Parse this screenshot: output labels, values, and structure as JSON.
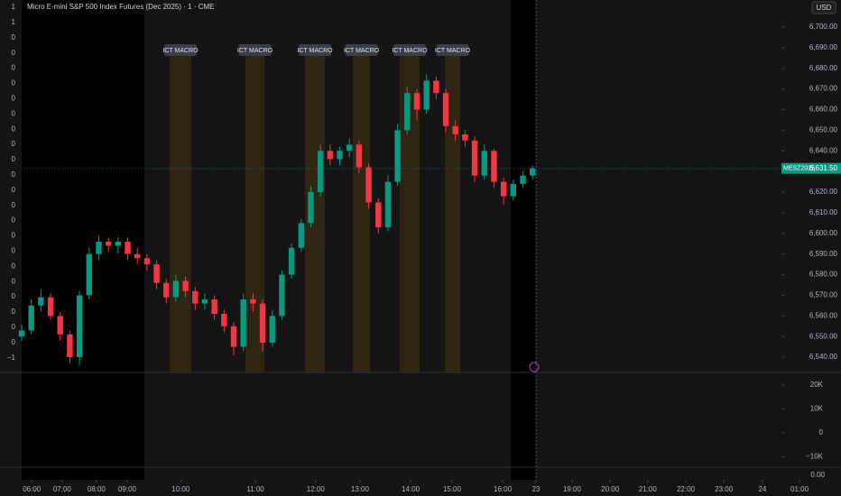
{
  "chart_data": {
    "type": "candlestick",
    "title": "Micro E-mini S&P 500 Index Futures (Dec 2025) · 1 · CME",
    "currency": "USD",
    "xlim": [
      0,
      170
    ],
    "ylim": [
      6532.6,
      6713.1
    ],
    "yticks": [
      {
        "value": 6540,
        "label": "6,540.00"
      },
      {
        "value": 6550,
        "label": "6,550.00"
      },
      {
        "value": 6560,
        "label": "6,560.00"
      },
      {
        "value": 6570,
        "label": "6,570.00"
      },
      {
        "value": 6580,
        "label": "6,580.00"
      },
      {
        "value": 6590,
        "label": "6,590.00"
      },
      {
        "value": 6600,
        "label": "6,600.00"
      },
      {
        "value": 6610,
        "label": "6,610.00"
      },
      {
        "value": 6620,
        "label": "6,620.00"
      },
      {
        "value": 6640,
        "label": "6,640.00"
      },
      {
        "value": 6650,
        "label": "6,650.00"
      },
      {
        "value": 6660,
        "label": "6,660.00"
      },
      {
        "value": 6670,
        "label": "6,670.00"
      },
      {
        "value": 6680,
        "label": "6,680.00"
      },
      {
        "value": 6690,
        "label": "6,690.00"
      },
      {
        "value": 6700,
        "label": "6,700.00"
      }
    ],
    "xticks": [
      {
        "value": 2.1,
        "label": "06:00"
      },
      {
        "value": 8.4,
        "label": "07:00"
      },
      {
        "value": 15.5,
        "label": "08:00"
      },
      {
        "value": 21.9,
        "label": "09:00"
      },
      {
        "value": 33.0,
        "label": "10:00"
      },
      {
        "value": 48.5,
        "label": "11:00"
      },
      {
        "value": 61.0,
        "label": "12:00"
      },
      {
        "value": 70.2,
        "label": "13:00"
      },
      {
        "value": 80.7,
        "label": "14:00"
      },
      {
        "value": 89.3,
        "label": "15:00"
      },
      {
        "value": 99.8,
        "label": "16:00"
      },
      {
        "value": 106.7,
        "label": "23"
      },
      {
        "value": 114.2,
        "label": "19:00"
      },
      {
        "value": 122.1,
        "label": "20:00"
      },
      {
        "value": 129.9,
        "label": "21:00"
      },
      {
        "value": 137.8,
        "label": "22:00"
      },
      {
        "value": 145.7,
        "label": "23:00"
      },
      {
        "value": 153.7,
        "label": "24"
      },
      {
        "value": 161.4,
        "label": "01:00"
      }
    ],
    "up_color": "#089981",
    "down_color": "#f23645",
    "x": [
      0,
      2,
      4,
      6,
      8,
      10,
      12,
      14,
      16,
      18,
      20,
      22,
      24,
      26,
      28,
      30,
      32,
      34,
      36,
      38,
      40,
      42,
      44,
      46,
      48,
      50,
      52,
      54,
      56,
      58,
      60,
      62,
      64,
      66,
      68,
      70,
      72,
      74,
      76,
      78,
      80,
      82,
      84,
      86,
      88,
      90,
      92,
      94,
      96,
      98,
      100,
      102,
      104,
      106
    ],
    "open": [
      6550,
      6553,
      6565,
      6569,
      6560,
      6551,
      6540,
      6570,
      6590,
      6596,
      6594,
      6596,
      6590,
      6588,
      6585,
      6576,
      6569,
      6577,
      6572,
      6566,
      6568,
      6561,
      6555,
      6545,
      6568,
      6566,
      6547,
      6560,
      6580,
      6593,
      6605,
      6620,
      6640,
      6636,
      6640,
      6643,
      6632,
      6615,
      6603,
      6625,
      6650,
      6668,
      6660,
      6674,
      6668,
      6652,
      6648,
      6645,
      6628,
      6640,
      6625,
      6618,
      6624,
      6628
    ],
    "high": [
      6556,
      6568,
      6573,
      6571,
      6562,
      6553,
      6572,
      6593,
      6599,
      6598,
      6598,
      6598,
      6593,
      6590,
      6587,
      6578,
      6580,
      6579,
      6574,
      6571,
      6570,
      6563,
      6557,
      6571,
      6571,
      6568,
      6563,
      6582,
      6595,
      6607,
      6623,
      6643,
      6643,
      6642,
      6646,
      6645,
      6634,
      6617,
      6628,
      6653,
      6671,
      6670,
      6677,
      6676,
      6670,
      6655,
      6650,
      6647,
      6643,
      6641,
      6627,
      6626,
      6630,
      6633
    ],
    "low": [
      6548,
      6551,
      6562,
      6558,
      6548,
      6537,
      6536,
      6568,
      6587,
      6591,
      6590,
      6587,
      6585,
      6582,
      6573,
      6566,
      6567,
      6569,
      6563,
      6563,
      6558,
      6552,
      6541,
      6543,
      6562,
      6543,
      6545,
      6558,
      6578,
      6591,
      6603,
      6618,
      6633,
      6633,
      6637,
      6629,
      6612,
      6600,
      6601,
      6623,
      6648,
      6655,
      6658,
      6665,
      6649,
      6645,
      6642,
      6625,
      6626,
      6622,
      6614,
      6616,
      6622,
      6626
    ],
    "close": [
      6553,
      6565,
      6569,
      6560,
      6551,
      6540,
      6570,
      6590,
      6596,
      6594,
      6596,
      6590,
      6588,
      6585,
      6576,
      6569,
      6577,
      6572,
      6566,
      6568,
      6561,
      6555,
      6545,
      6568,
      6566,
      6547,
      6560,
      6580,
      6593,
      6605,
      6620,
      6640,
      6636,
      6640,
      6643,
      6632,
      6615,
      6603,
      6625,
      6650,
      6668,
      6660,
      6674,
      6668,
      6652,
      6648,
      6645,
      6628,
      6640,
      6625,
      6618,
      6624,
      6628,
      6631.5
    ],
    "extended_hours": [
      [
        0,
        25.5
      ],
      [
        101.5,
        106.7
      ]
    ],
    "shaded_ranges": [
      {
        "label": "ICT MACRO",
        "x": [
          30.7,
          35.2
        ]
      },
      {
        "label": "ICT MACRO",
        "x": [
          46.4,
          50.4
        ]
      },
      {
        "label": "ICT MACRO",
        "x": [
          58.8,
          62.9
        ]
      },
      {
        "label": "ICT MACRO",
        "x": [
          68.7,
          72.3
        ]
      },
      {
        "label": "ICT MACRO",
        "x": [
          78.4,
          82.6
        ]
      },
      {
        "label": "ICT MACRO",
        "x": [
          87.8,
          91.0
        ]
      }
    ],
    "last_price": {
      "name": "MESZ2025",
      "value": 6631.5,
      "label": "6,631.50"
    },
    "left_axis_labels": [
      "1",
      "1",
      "0",
      "0",
      "0",
      "0",
      "0",
      "0",
      "0",
      "0",
      "0",
      "0",
      "0",
      "0",
      "0",
      "0",
      "0",
      "0",
      "0",
      "0",
      "0",
      "0",
      "0",
      "−1"
    ],
    "lower_pane": {
      "ylim": [
        -14340,
        25280
      ],
      "yticks": [
        {
          "value": 20000,
          "label": "20K"
        },
        {
          "value": 10000,
          "label": "10K"
        },
        0,
        {
          "value": -10000,
          "label": "−10K"
        }
      ],
      "extra_label": "0.00"
    }
  }
}
